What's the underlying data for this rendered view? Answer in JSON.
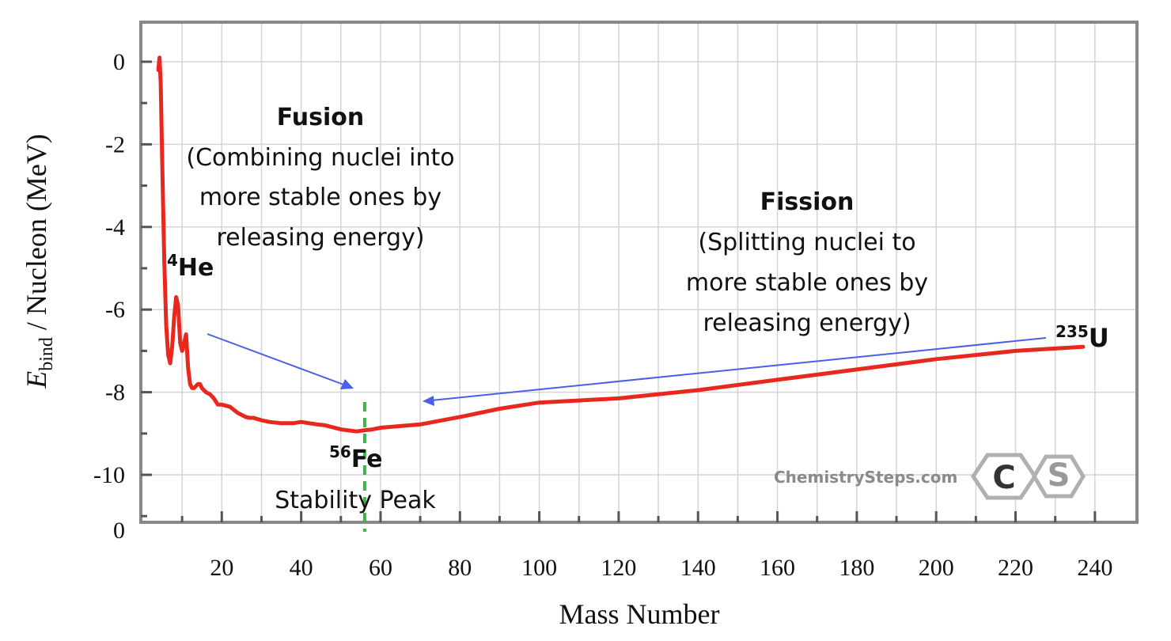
{
  "chart_data": {
    "type": "line",
    "xlabel": "Mass Number",
    "ylabel_main": "E",
    "ylabel_sub": "bind",
    "ylabel_rest": " / Nucleon (MeV)",
    "xlim": [
      0,
      250
    ],
    "ylim": [
      -11.2,
      1
    ],
    "x_ticks": [
      20,
      40,
      60,
      80,
      100,
      120,
      140,
      160,
      180,
      200,
      220,
      240
    ],
    "y_ticks": [
      0,
      -2,
      -4,
      -6,
      -8,
      -10
    ],
    "y_bottom_label": "0",
    "grid": true,
    "series": [
      {
        "name": "Binding energy per nucleon",
        "color": "#e8281e",
        "x": [
          4,
          4.3,
          4.6,
          5,
          5.5,
          6,
          6.5,
          7,
          7.5,
          8,
          8.5,
          9,
          9.5,
          10,
          10.5,
          11,
          11.5,
          12,
          12.5,
          13,
          13.5,
          14,
          14.5,
          15,
          15.5,
          16,
          17,
          18,
          19,
          20,
          22,
          24,
          26,
          27,
          28,
          30,
          32,
          35,
          38,
          40,
          42,
          44,
          46,
          48,
          50,
          54,
          56,
          58,
          60,
          70,
          80,
          90,
          100,
          120,
          140,
          160,
          180,
          200,
          220,
          237
        ],
        "y": [
          -0.2,
          0.1,
          -0.5,
          -2.5,
          -4.8,
          -6.4,
          -7.1,
          -7.3,
          -6.9,
          -6.2,
          -5.7,
          -5.9,
          -6.8,
          -7.0,
          -6.8,
          -6.6,
          -7.4,
          -7.8,
          -7.9,
          -7.9,
          -7.85,
          -7.8,
          -7.8,
          -7.9,
          -7.95,
          -8.0,
          -8.05,
          -8.15,
          -8.3,
          -8.3,
          -8.35,
          -8.5,
          -8.6,
          -8.62,
          -8.62,
          -8.68,
          -8.72,
          -8.75,
          -8.75,
          -8.72,
          -8.75,
          -8.78,
          -8.8,
          -8.85,
          -8.9,
          -8.95,
          -8.92,
          -8.9,
          -8.86,
          -8.78,
          -8.6,
          -8.4,
          -8.25,
          -8.15,
          -7.95,
          -7.7,
          -7.45,
          -7.2,
          -7.0,
          -6.9
        ]
      }
    ],
    "stability_line": {
      "x": 56,
      "color": "#3cb44b"
    },
    "annotations": {
      "fusion_title": "Fusion",
      "fusion_desc": [
        "(Combining nuclei into",
        "more stable ones by",
        "releasing energy)"
      ],
      "fission_title": "Fission",
      "fission_desc": [
        "(Splitting nuclei to",
        "more stable ones by",
        "releasing energy)"
      ],
      "he_mass": "4",
      "he_symbol": "He",
      "fe_mass": "56",
      "fe_symbol": "Fe",
      "u_mass": "235",
      "u_symbol": "U",
      "stability_label": "Stability Peak",
      "arrow_color": "#4a5ee8"
    }
  },
  "watermark": {
    "text": "ChemistrySteps.com",
    "logo_letters": [
      "C",
      "S"
    ]
  }
}
